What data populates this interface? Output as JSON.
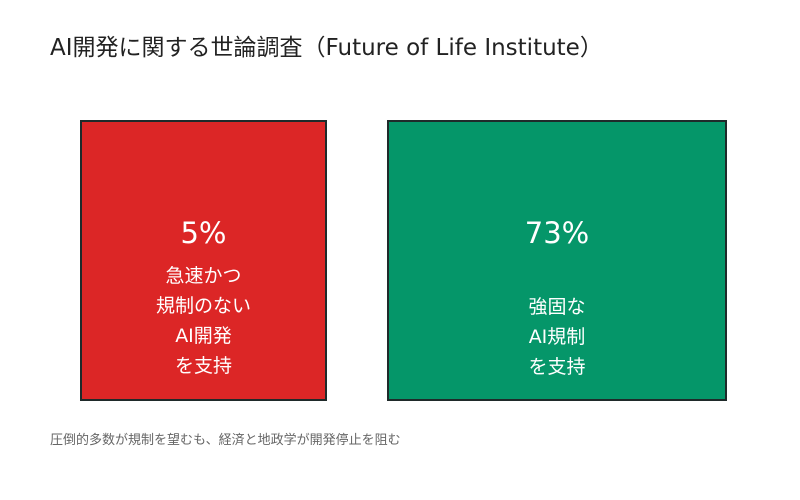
{
  "chart_data": {
    "type": "bar",
    "title": "AI開発に関する世論調査（Future of Life Institute）",
    "categories": [
      "急速かつ\n規制のない\nAI開発\nを支持",
      "強固な\nAI規制\nを支持"
    ],
    "values": [
      5,
      73
    ],
    "value_labels": [
      "5%",
      "73%"
    ],
    "colors": [
      "#dc2626",
      "#059669"
    ],
    "unit": "%",
    "grid": false,
    "legend": "none"
  },
  "footnote": "圧倒的多数が規制を望むも、経済と地政学が開発停止を阻む"
}
